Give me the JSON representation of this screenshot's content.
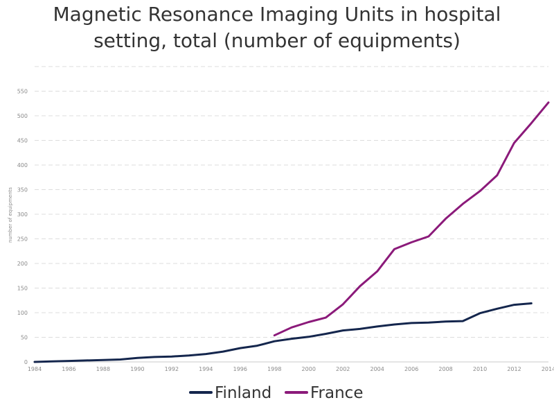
{
  "chart_data": {
    "type": "line",
    "title_lines": [
      "Magnetic Resonance Imaging Units in hospital",
      "setting, total (number of equipments)"
    ],
    "xlabel": "",
    "ylabel": "number of equipments",
    "xlim": [
      1984,
      2014
    ],
    "ylim": [
      0,
      600
    ],
    "x_ticks": [
      1984,
      1986,
      1988,
      1990,
      1992,
      1994,
      1996,
      1998,
      2000,
      2002,
      2004,
      2006,
      2008,
      2010,
      2012,
      2014
    ],
    "y_ticks": [
      0,
      50,
      100,
      150,
      200,
      250,
      300,
      350,
      400,
      450,
      500,
      550
    ],
    "grid": true,
    "legend_position": "bottom",
    "series": [
      {
        "name": "Finland",
        "color": "#14264d",
        "x": [
          1984,
          1985,
          1986,
          1987,
          1988,
          1989,
          1990,
          1991,
          1992,
          1993,
          1994,
          1995,
          1996,
          1997,
          1998,
          1999,
          2000,
          2001,
          2002,
          2003,
          2004,
          2005,
          2006,
          2007,
          2008,
          2009,
          2010,
          2011,
          2012,
          2013
        ],
        "y": [
          0,
          1,
          2,
          3,
          4,
          5,
          8,
          10,
          11,
          13,
          16,
          21,
          28,
          33,
          42,
          47,
          51,
          57,
          64,
          67,
          72,
          76,
          79,
          80,
          82,
          83,
          99,
          108,
          116,
          119
        ]
      },
      {
        "name": "France",
        "color": "#8b1a7a",
        "x": [
          1998,
          1999,
          2000,
          2001,
          2002,
          2003,
          2004,
          2005,
          2006,
          2007,
          2008,
          2009,
          2010,
          2011,
          2012,
          2013,
          2014
        ],
        "y": [
          54,
          70,
          81,
          90,
          117,
          154,
          184,
          229,
          243,
          255,
          291,
          321,
          347,
          379,
          445,
          485,
          527
        ]
      }
    ]
  }
}
